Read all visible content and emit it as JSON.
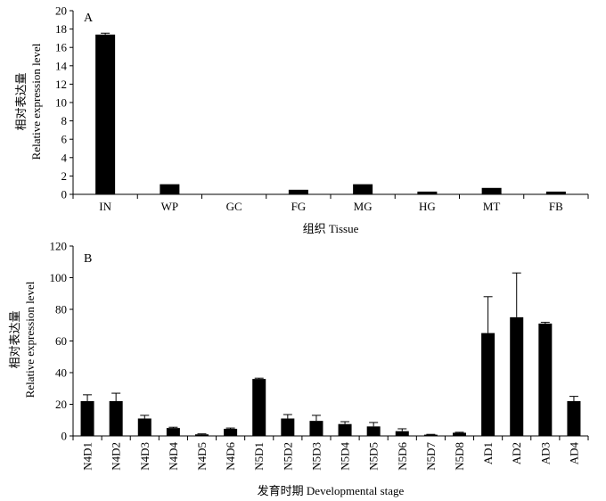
{
  "chart_data": [
    {
      "panel_label": "A",
      "type": "bar",
      "title": "",
      "xlabel": "组织 Tissue",
      "ylabel_line1": "相对表达量",
      "ylabel_line2": "Relative expression level",
      "ylim": [
        0,
        20
      ],
      "yticks": [
        0,
        2,
        4,
        6,
        8,
        10,
        12,
        14,
        16,
        18,
        20
      ],
      "categories": [
        "IN",
        "WP",
        "GC",
        "FG",
        "MG",
        "HG",
        "MT",
        "FB"
      ],
      "values": [
        17.4,
        1.1,
        0.0,
        0.5,
        1.1,
        0.3,
        0.7,
        0.3
      ],
      "errors": [
        0.15,
        0.0,
        0.0,
        0.0,
        0.0,
        0.0,
        0.0,
        0.0
      ],
      "bar_color": "#000000"
    },
    {
      "panel_label": "B",
      "type": "bar",
      "title": "",
      "xlabel": "发育时期 Developmental stage",
      "ylabel_line1": "相对表达量",
      "ylabel_line2": "Relative expression level",
      "ylim": [
        0,
        120
      ],
      "yticks": [
        0,
        20,
        40,
        60,
        80,
        100,
        120
      ],
      "categories": [
        "N4D1",
        "N4D2",
        "N4D3",
        "N4D4",
        "N4D5",
        "N4D6",
        "N5D1",
        "N5D2",
        "N5D3",
        "N5D4",
        "N5D5",
        "N5D6",
        "N5D7",
        "N5D8",
        "AD1",
        "AD2",
        "AD3",
        "AD4"
      ],
      "values": [
        22,
        22,
        11,
        5,
        1,
        4.5,
        36,
        11,
        9.5,
        7.5,
        6,
        3,
        0.8,
        2,
        65,
        75,
        71,
        22
      ],
      "errors": [
        4,
        5,
        2,
        0.5,
        0.3,
        0.5,
        0.5,
        2.5,
        3.5,
        1.5,
        2.5,
        1.5,
        0.2,
        0.3,
        23,
        28,
        0.8,
        3
      ],
      "bar_color": "#000000"
    }
  ]
}
